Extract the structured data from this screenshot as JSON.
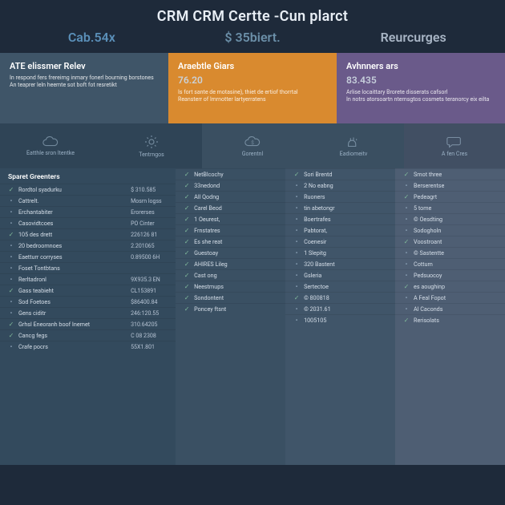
{
  "title": "CRM CRM Certte -Cun plarct",
  "metrics": [
    {
      "value": "Cab.54x"
    },
    {
      "value": "$ 35biert."
    },
    {
      "value": "Reurcurges"
    }
  ],
  "tiers": [
    {
      "name": "ATE elissmer Relev",
      "bg": "#3f5568",
      "price": "",
      "desc1": "In respond fers frereimg inmary fonerl bourning borstones",
      "desc2": "An teaprer leln heemte sot boft fot resretikt"
    },
    {
      "name": "Araebtle Giars",
      "bg": "#d98a2f",
      "price": "76.20",
      "desc1": "Is fort sante de motasine), thiet de ertiof thorrtal",
      "desc2": "Reansterr of lmrnotter lartyerratens"
    },
    {
      "name": "Avhnners ars",
      "bg": "#6a5a8a",
      "price": "83.435",
      "desc1": "Arlise locaittary Brorete disserats cafsorl",
      "desc2": "In notrs atorsoartn nternsgtos cosmets teranorcy eix eilta"
    }
  ],
  "iconLabels": [
    "Eatthle sron ltentke",
    "Tentrngos",
    "Gorentnl",
    "Eadiomeitv",
    "A fen Cres"
  ],
  "cols": [
    {
      "header": "Sparet Greenters",
      "rows": [
        {
          "t": true,
          "label": "Rordtol syadurku",
          "value": "$ 310.585"
        },
        {
          "t": false,
          "label": "Cattrelt.",
          "value": "Mosrn logss"
        },
        {
          "t": false,
          "label": "Erchantabiter",
          "value": "Erorerses"
        },
        {
          "t": false,
          "label": "Casovidtcoes",
          "value": "PO Cinter"
        },
        {
          "t": true,
          "label": "105 des drett",
          "value": "226126 81"
        },
        {
          "t": false,
          "label": "20 bedroomnoes",
          "value": "2.201065"
        },
        {
          "t": false,
          "label": "Eaetturr corryses",
          "value": "0.89500 6H"
        },
        {
          "t": false,
          "label": "Foset Tontbtans",
          "value": ""
        },
        {
          "t": false,
          "label": "Rerltadronl",
          "value": "9X935.3 EN"
        },
        {
          "t": true,
          "label": "Gass teabieht",
          "value": "CL153891"
        },
        {
          "t": false,
          "label": "Sod Foetoes",
          "value": "$86400.84"
        },
        {
          "t": false,
          "label": "Gens ciditr",
          "value": "246:120.55"
        },
        {
          "t": true,
          "label": "Grhsl Eneoranh boof Inemet",
          "value": "310.64205"
        },
        {
          "t": true,
          "label": "Cancg fegs",
          "value": "C 08 2308"
        },
        {
          "t": false,
          "label": "Crafe pocrs",
          "value": "55X1.801"
        }
      ]
    },
    {
      "header": "",
      "rows": [
        {
          "t": true,
          "label": "NetBlcochy",
          "value": ""
        },
        {
          "t": true,
          "label": "33nedond",
          "value": ""
        },
        {
          "t": true,
          "label": "All Qodng",
          "value": ""
        },
        {
          "t": true,
          "label": "Carel Beod",
          "value": ""
        },
        {
          "t": true,
          "label": "1 Oeurest,",
          "value": ""
        },
        {
          "t": true,
          "label": "Frnstatres",
          "value": ""
        },
        {
          "t": true,
          "label": "Es she reat",
          "value": ""
        },
        {
          "t": true,
          "label": "Guestoay",
          "value": ""
        },
        {
          "t": true,
          "label": "AHIRES Lileg",
          "value": ""
        },
        {
          "t": true,
          "label": "Cast ong",
          "value": ""
        },
        {
          "t": true,
          "label": "Neestmups",
          "value": ""
        },
        {
          "t": true,
          "label": "Sondontent",
          "value": ""
        },
        {
          "t": true,
          "label": "Poncey ftsnt",
          "value": ""
        }
      ]
    },
    {
      "header": "",
      "rows": [
        {
          "t": true,
          "label": "Sori Brentd",
          "value": ""
        },
        {
          "t": false,
          "label": "2 No eabng",
          "value": ""
        },
        {
          "t": false,
          "label": "Ruoners",
          "value": ""
        },
        {
          "t": false,
          "label": "tin abetongr",
          "value": ""
        },
        {
          "t": false,
          "label": "Boertrafes",
          "value": ""
        },
        {
          "t": false,
          "label": "Pabtorat,",
          "value": ""
        },
        {
          "t": false,
          "label": "Coenesir",
          "value": ""
        },
        {
          "t": false,
          "label": "1 Slepitg",
          "value": ""
        },
        {
          "t": false,
          "label": "320 Bastent",
          "value": ""
        },
        {
          "t": false,
          "label": "Gsleria",
          "value": ""
        },
        {
          "t": false,
          "label": "Sertectoe",
          "value": ""
        },
        {
          "t": true,
          "label": "© 800818",
          "value": ""
        },
        {
          "t": false,
          "label": "© 2031.61",
          "value": ""
        },
        {
          "t": false,
          "label": "1005105",
          "value": ""
        }
      ]
    },
    {
      "header": "",
      "rows": [
        {
          "t": true,
          "label": "Smot three",
          "value": ""
        },
        {
          "t": false,
          "label": "Berserentse",
          "value": ""
        },
        {
          "t": true,
          "label": "Pedeagrt",
          "value": ""
        },
        {
          "t": false,
          "label": "5 tome",
          "value": ""
        },
        {
          "t": false,
          "label": "© Oesdting",
          "value": ""
        },
        {
          "t": false,
          "label": "Sodogholn",
          "value": ""
        },
        {
          "t": true,
          "label": "Voostroant",
          "value": ""
        },
        {
          "t": false,
          "label": "© Sastentte",
          "value": ""
        },
        {
          "t": false,
          "label": "Cottum",
          "value": ""
        },
        {
          "t": false,
          "label": "Pedsuocoy",
          "value": ""
        },
        {
          "t": true,
          "label": "es aoughinp",
          "value": ""
        },
        {
          "t": false,
          "label": "A Feal Fopot",
          "value": ""
        },
        {
          "t": false,
          "label": "Al Caconds",
          "value": ""
        },
        {
          "t": true,
          "label": "Rerisolats",
          "value": ""
        }
      ]
    }
  ]
}
